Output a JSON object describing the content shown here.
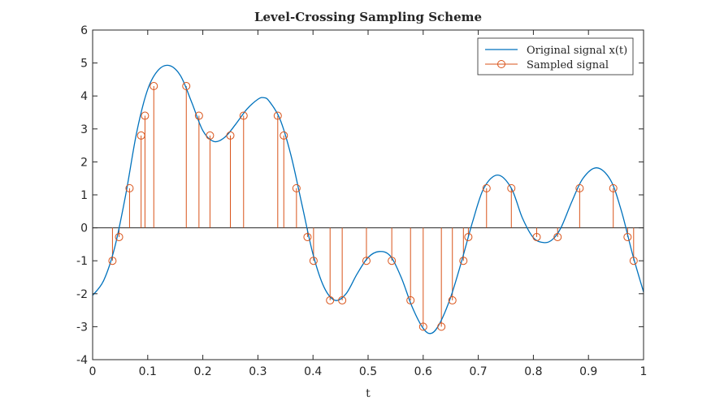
{
  "chart_data": {
    "type": "line",
    "title": "Level-Crossing Sampling Scheme",
    "xlabel": "t",
    "ylabel": "",
    "xlim": [
      0,
      1
    ],
    "ylim": [
      -4,
      6
    ],
    "xticks": [
      0,
      0.1,
      0.2,
      0.3,
      0.4,
      0.5,
      0.6,
      0.7,
      0.8,
      0.9,
      1
    ],
    "xtick_labels": [
      "0",
      "0.1",
      "0.2",
      "0.3",
      "0.4",
      "0.5",
      "0.6",
      "0.7",
      "0.8",
      "0.9",
      "1"
    ],
    "yticks": [
      -4,
      -3,
      -2,
      -1,
      0,
      1,
      2,
      3,
      4,
      5,
      6
    ],
    "ytick_labels": [
      "-4",
      "-3",
      "-2",
      "-1",
      "0",
      "1",
      "2",
      "3",
      "4",
      "5",
      "6"
    ],
    "grid": false,
    "legend_position": "top-right",
    "colors": {
      "original": "#0072BD",
      "sampled": "#D95319"
    },
    "series": [
      {
        "name": "Original signal x(t)",
        "style": "line",
        "x": [
          0,
          0.02,
          0.04,
          0.06,
          0.08,
          0.1,
          0.12,
          0.14,
          0.16,
          0.18,
          0.2,
          0.22,
          0.24,
          0.26,
          0.28,
          0.3,
          0.31,
          0.32,
          0.34,
          0.36,
          0.38,
          0.4,
          0.42,
          0.44,
          0.46,
          0.48,
          0.5,
          0.52,
          0.54,
          0.56,
          0.58,
          0.6,
          0.615,
          0.63,
          0.65,
          0.67,
          0.69,
          0.71,
          0.735,
          0.76,
          0.78,
          0.8,
          0.82,
          0.835,
          0.85,
          0.87,
          0.89,
          0.915,
          0.94,
          0.96,
          0.98,
          1
        ],
        "y": [
          -2.05,
          -1.6,
          -0.6,
          1.0,
          2.9,
          4.2,
          4.8,
          4.92,
          4.6,
          3.8,
          2.95,
          2.62,
          2.75,
          3.15,
          3.6,
          3.9,
          3.95,
          3.85,
          3.3,
          2.2,
          0.7,
          -0.8,
          -1.8,
          -2.2,
          -2.0,
          -1.4,
          -0.9,
          -0.72,
          -0.85,
          -1.5,
          -2.4,
          -3.05,
          -3.2,
          -2.9,
          -2.1,
          -1.0,
          0.2,
          1.2,
          1.6,
          1.2,
          0.3,
          -0.3,
          -0.45,
          -0.35,
          0.0,
          0.8,
          1.5,
          1.82,
          1.45,
          0.5,
          -0.8,
          -1.95
        ]
      },
      {
        "name": "Sampled signal",
        "style": "stem",
        "x": [
          0.036,
          0.048,
          0.067,
          0.088,
          0.095,
          0.111,
          0.17,
          0.193,
          0.213,
          0.25,
          0.274,
          0.336,
          0.347,
          0.37,
          0.39,
          0.401,
          0.431,
          0.453,
          0.497,
          0.543,
          0.577,
          0.6,
          0.633,
          0.653,
          0.673,
          0.682,
          0.715,
          0.76,
          0.806,
          0.844,
          0.884,
          0.945,
          0.971,
          0.982
        ],
        "y": [
          -1.0,
          -0.28,
          1.2,
          2.8,
          3.4,
          4.3,
          4.3,
          3.4,
          2.8,
          2.8,
          3.4,
          3.4,
          2.8,
          1.2,
          -0.28,
          -1.0,
          -2.2,
          -2.2,
          -1.0,
          -1.0,
          -2.2,
          -3.0,
          -3.0,
          -2.2,
          -1.0,
          -0.28,
          1.2,
          1.2,
          -0.28,
          -0.28,
          1.2,
          1.2,
          -0.28,
          -1.0
        ]
      }
    ]
  }
}
